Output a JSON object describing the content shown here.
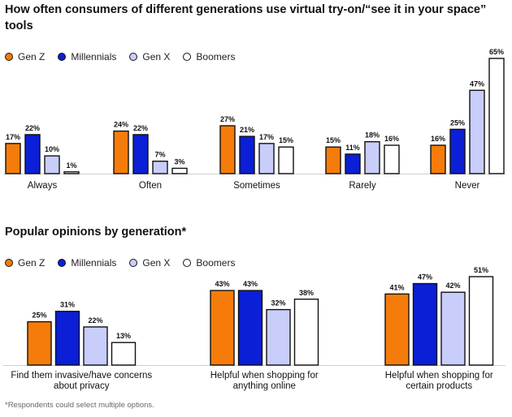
{
  "footnote": "*Respondents could select multiple options.",
  "series_colors": [
    "#f57c0a",
    "#0a1fd6",
    "#c8cdfa",
    "#ffffff"
  ],
  "chart_data": [
    {
      "type": "bar",
      "title": "How often consumers of different generations use virtual try-on/“see it in your space” tools",
      "categories": [
        "Always",
        "Often",
        "Sometimes",
        "Rarely",
        "Never"
      ],
      "series": [
        {
          "name": "Gen Z",
          "values": [
            17,
            24,
            27,
            15,
            16
          ]
        },
        {
          "name": "Millennials",
          "values": [
            22,
            22,
            21,
            11,
            25
          ]
        },
        {
          "name": "Gen X",
          "values": [
            10,
            7,
            17,
            18,
            47
          ]
        },
        {
          "name": "Boomers",
          "values": [
            1,
            3,
            15,
            16,
            65
          ]
        }
      ],
      "value_labels": [
        [
          "17%",
          "24%",
          "27%",
          "15%",
          "16%"
        ],
        [
          "22%",
          "22%",
          "21%",
          "11%",
          "25%"
        ],
        [
          "10%",
          "7%",
          "17%",
          "18%",
          "47%"
        ],
        [
          "1%",
          "3%",
          "15%",
          "16%",
          "65%"
        ]
      ],
      "unit": "%",
      "xlabel": "",
      "ylabel": "",
      "ylim": [
        0,
        65
      ],
      "grid": false,
      "legend": "top-left"
    },
    {
      "type": "bar",
      "title": "Popular opinions by generation*",
      "categories": [
        [
          "Find them invasive/have concerns",
          "about privacy"
        ],
        [
          "Helpful when shopping for",
          "anything online"
        ],
        [
          "Helpful when shopping for",
          "certain products"
        ]
      ],
      "series": [
        {
          "name": "Gen Z",
          "values": [
            25,
            43,
            41
          ]
        },
        {
          "name": "Millennials",
          "values": [
            31,
            43,
            47
          ]
        },
        {
          "name": "Gen X",
          "values": [
            22,
            32,
            42
          ]
        },
        {
          "name": "Boomers",
          "values": [
            13,
            38,
            51
          ]
        }
      ],
      "value_labels": [
        [
          "25%",
          "43%",
          "41%"
        ],
        [
          "31%",
          "43%",
          "47%"
        ],
        [
          "22%",
          "32%",
          "42%"
        ],
        [
          "13%",
          "38%",
          "51%"
        ]
      ],
      "unit": "%",
      "xlabel": "",
      "ylabel": "",
      "ylim": [
        0,
        51
      ],
      "grid": false,
      "legend": "top-left"
    }
  ]
}
